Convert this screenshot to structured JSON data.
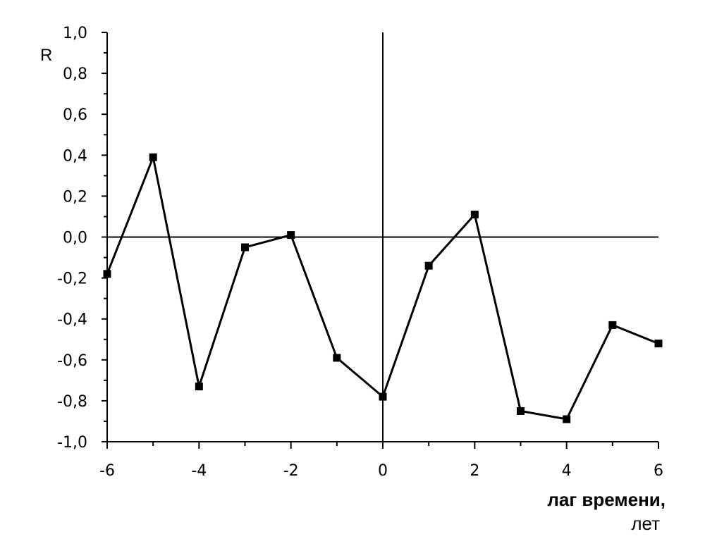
{
  "chart_data": {
    "type": "line",
    "title": "",
    "ylabel": "R",
    "xlabel": "лаг времени,",
    "xlabel_unit": "лет",
    "xlim": [
      -6,
      6
    ],
    "ylim": [
      -1.0,
      1.0
    ],
    "x_ticks": [
      -6,
      -4,
      -2,
      0,
      2,
      4,
      6
    ],
    "x_tick_labels": [
      "-6",
      "-4",
      "-2",
      "0",
      "2",
      "4",
      "6"
    ],
    "y_ticks": [
      1.0,
      0.8,
      0.6,
      0.4,
      0.2,
      0.0,
      -0.2,
      -0.4,
      -0.6,
      -0.8,
      -1.0
    ],
    "y_tick_labels": [
      "1,0",
      "0,8",
      "0,6",
      "0,4",
      "0,2",
      "0,0",
      "-0,2",
      "-0,4",
      "-0,6",
      "-0,8",
      "-1,0"
    ],
    "grid": false,
    "reference_lines": {
      "y": 0,
      "x": 0
    },
    "series": [
      {
        "x": [
          -6,
          -5,
          -4,
          -3,
          -2,
          -1,
          0,
          1,
          2,
          3,
          4,
          5,
          6
        ],
        "values": [
          -0.18,
          0.39,
          -0.73,
          -0.05,
          0.01,
          -0.59,
          -0.78,
          -0.14,
          0.11,
          -0.85,
          -0.89,
          -0.43,
          -0.52
        ],
        "marker": "square",
        "color": "#000000"
      }
    ]
  }
}
